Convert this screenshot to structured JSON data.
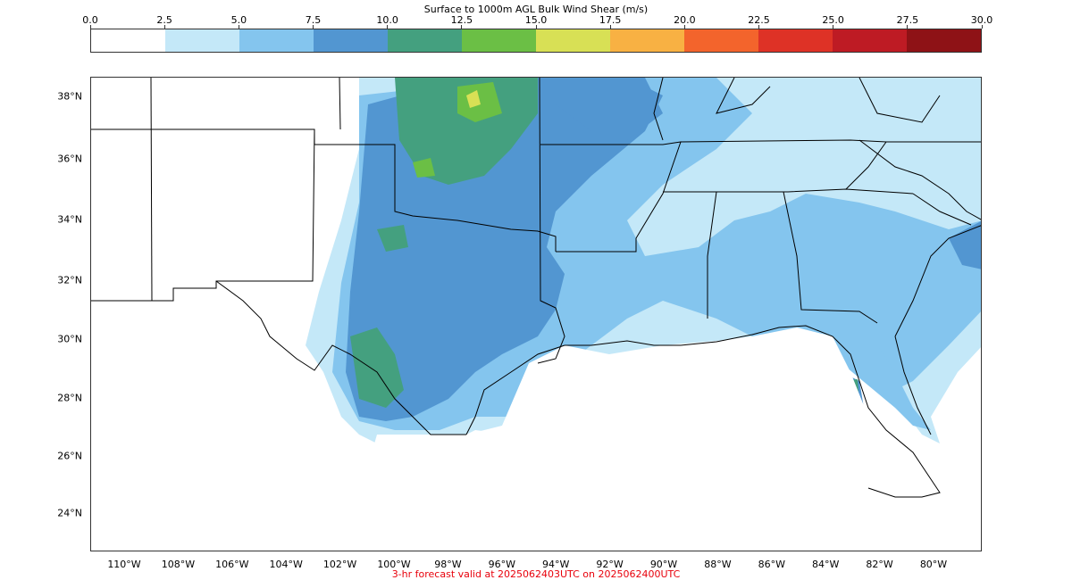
{
  "colorbar": {
    "title": "Surface to 1000m AGL Bulk Wind Shear (m/s)",
    "ticks": [
      "0.0",
      "2.5",
      "5.0",
      "7.5",
      "10.0",
      "12.5",
      "15.0",
      "17.5",
      "20.0",
      "22.5",
      "25.0",
      "27.5",
      "30.0"
    ],
    "colors": [
      "#ffffff",
      "#c4e8f8",
      "#84c5ee",
      "#5296d1",
      "#44a07f",
      "#6bbf45",
      "#d8e055",
      "#f8b143",
      "#f3642c",
      "#de3226",
      "#be1b24",
      "#8e1216"
    ]
  },
  "map": {
    "lat_labels": [
      "38°N",
      "36°N",
      "34°N",
      "32°N",
      "30°N",
      "28°N",
      "26°N",
      "24°N"
    ],
    "lon_labels": [
      "110°W",
      "108°W",
      "106°W",
      "104°W",
      "102°W",
      "100°W",
      "98°W",
      "96°W",
      "94°W",
      "92°W",
      "90°W",
      "88°W",
      "86°W",
      "84°W",
      "82°W",
      "80°W"
    ]
  },
  "footer": {
    "text": "3-hr forecast valid at 2025062403UTC on 2025062400UTC"
  }
}
